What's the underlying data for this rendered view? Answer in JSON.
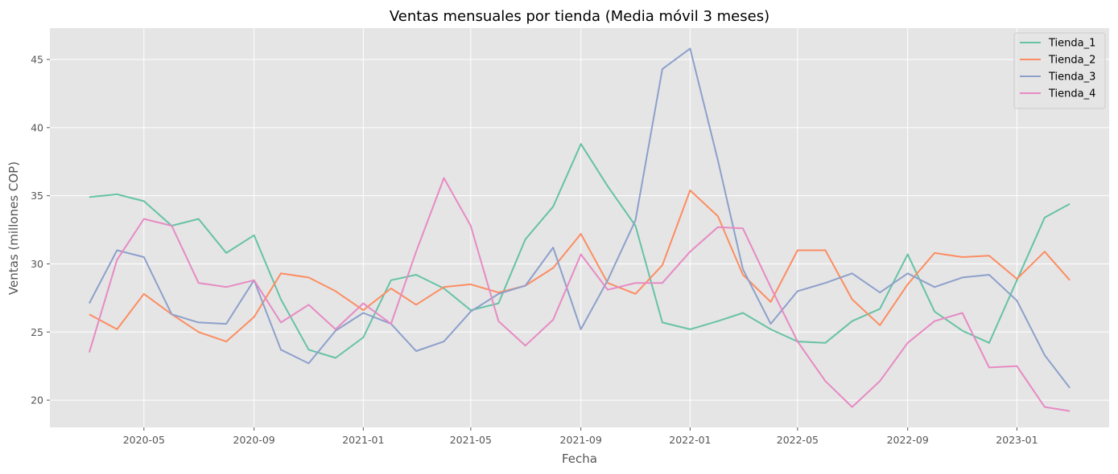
{
  "chart_data": {
    "type": "line",
    "title": "Ventas mensuales por tienda (Media móvil 3 meses)",
    "xlabel": "Fecha",
    "ylabel": "Ventas (millones COP)",
    "x": [
      "2020-03",
      "2020-04",
      "2020-05",
      "2020-06",
      "2020-07",
      "2020-08",
      "2020-09",
      "2020-10",
      "2020-11",
      "2020-12",
      "2021-01",
      "2021-02",
      "2021-03",
      "2021-04",
      "2021-05",
      "2021-06",
      "2021-07",
      "2021-08",
      "2021-09",
      "2021-10",
      "2021-11",
      "2021-12",
      "2022-01",
      "2022-02",
      "2022-03",
      "2022-04",
      "2022-05",
      "2022-06",
      "2022-07",
      "2022-08",
      "2022-09",
      "2022-10",
      "2022-11",
      "2022-12",
      "2023-01",
      "2023-02",
      "2023-03"
    ],
    "x_ticks": [
      "2020-05",
      "2020-09",
      "2021-01",
      "2021-05",
      "2021-09",
      "2022-01",
      "2022-05",
      "2022-09",
      "2023-01"
    ],
    "y_ticks": [
      20,
      25,
      30,
      35,
      40,
      45
    ],
    "ylim": [
      18,
      47.3
    ],
    "xlim": [
      "2020-01-17",
      "2023-04-14"
    ],
    "grid": true,
    "legend_position": "top-right",
    "background": "#e5e5e5",
    "series": [
      {
        "name": "Tienda_1",
        "color": "#66c2a5",
        "values": [
          34.9,
          35.1,
          34.6,
          32.8,
          33.3,
          30.8,
          32.1,
          27.4,
          23.7,
          23.1,
          24.6,
          28.8,
          29.2,
          28.2,
          26.6,
          27.1,
          31.8,
          34.2,
          38.8,
          35.7,
          32.8,
          25.7,
          25.2,
          25.8,
          26.4,
          25.2,
          24.3,
          24.2,
          25.8,
          26.7,
          30.7,
          26.5,
          25.1,
          24.2,
          28.8,
          33.4,
          34.4
        ]
      },
      {
        "name": "Tienda_2",
        "color": "#fc8d62",
        "values": [
          26.3,
          25.2,
          27.8,
          26.3,
          25.0,
          24.3,
          26.1,
          29.3,
          29.0,
          28.0,
          26.6,
          28.2,
          27.0,
          28.3,
          28.5,
          27.9,
          28.4,
          29.7,
          32.2,
          28.6,
          27.8,
          29.9,
          35.4,
          33.5,
          29.2,
          27.2,
          31.0,
          31.0,
          27.4,
          25.5,
          28.5,
          30.8,
          30.5,
          30.6,
          28.9,
          30.9,
          28.8
        ]
      },
      {
        "name": "Tienda_3",
        "color": "#8da0cb",
        "values": [
          27.1,
          31.0,
          30.5,
          26.3,
          25.7,
          25.6,
          28.8,
          23.7,
          22.7,
          25.1,
          26.4,
          25.6,
          23.6,
          24.3,
          26.5,
          27.8,
          28.4,
          31.2,
          25.2,
          28.8,
          33.2,
          44.3,
          45.8,
          37.6,
          29.6,
          25.6,
          28.0,
          28.6,
          29.3,
          27.9,
          29.3,
          28.3,
          29.0,
          29.2,
          27.3,
          23.3,
          20.9
        ]
      },
      {
        "name": "Tienda_4",
        "color": "#e78ac3",
        "values": [
          23.5,
          30.3,
          33.3,
          32.8,
          28.6,
          28.3,
          28.8,
          25.7,
          27.0,
          25.2,
          27.1,
          25.6,
          30.9,
          36.3,
          32.8,
          25.8,
          24.0,
          25.9,
          30.7,
          28.1,
          28.6,
          28.6,
          30.9,
          32.7,
          32.6,
          28.3,
          24.3,
          21.4,
          19.5,
          21.4,
          24.2,
          25.8,
          26.4,
          22.4,
          22.5,
          19.5,
          19.2
        ]
      }
    ]
  }
}
